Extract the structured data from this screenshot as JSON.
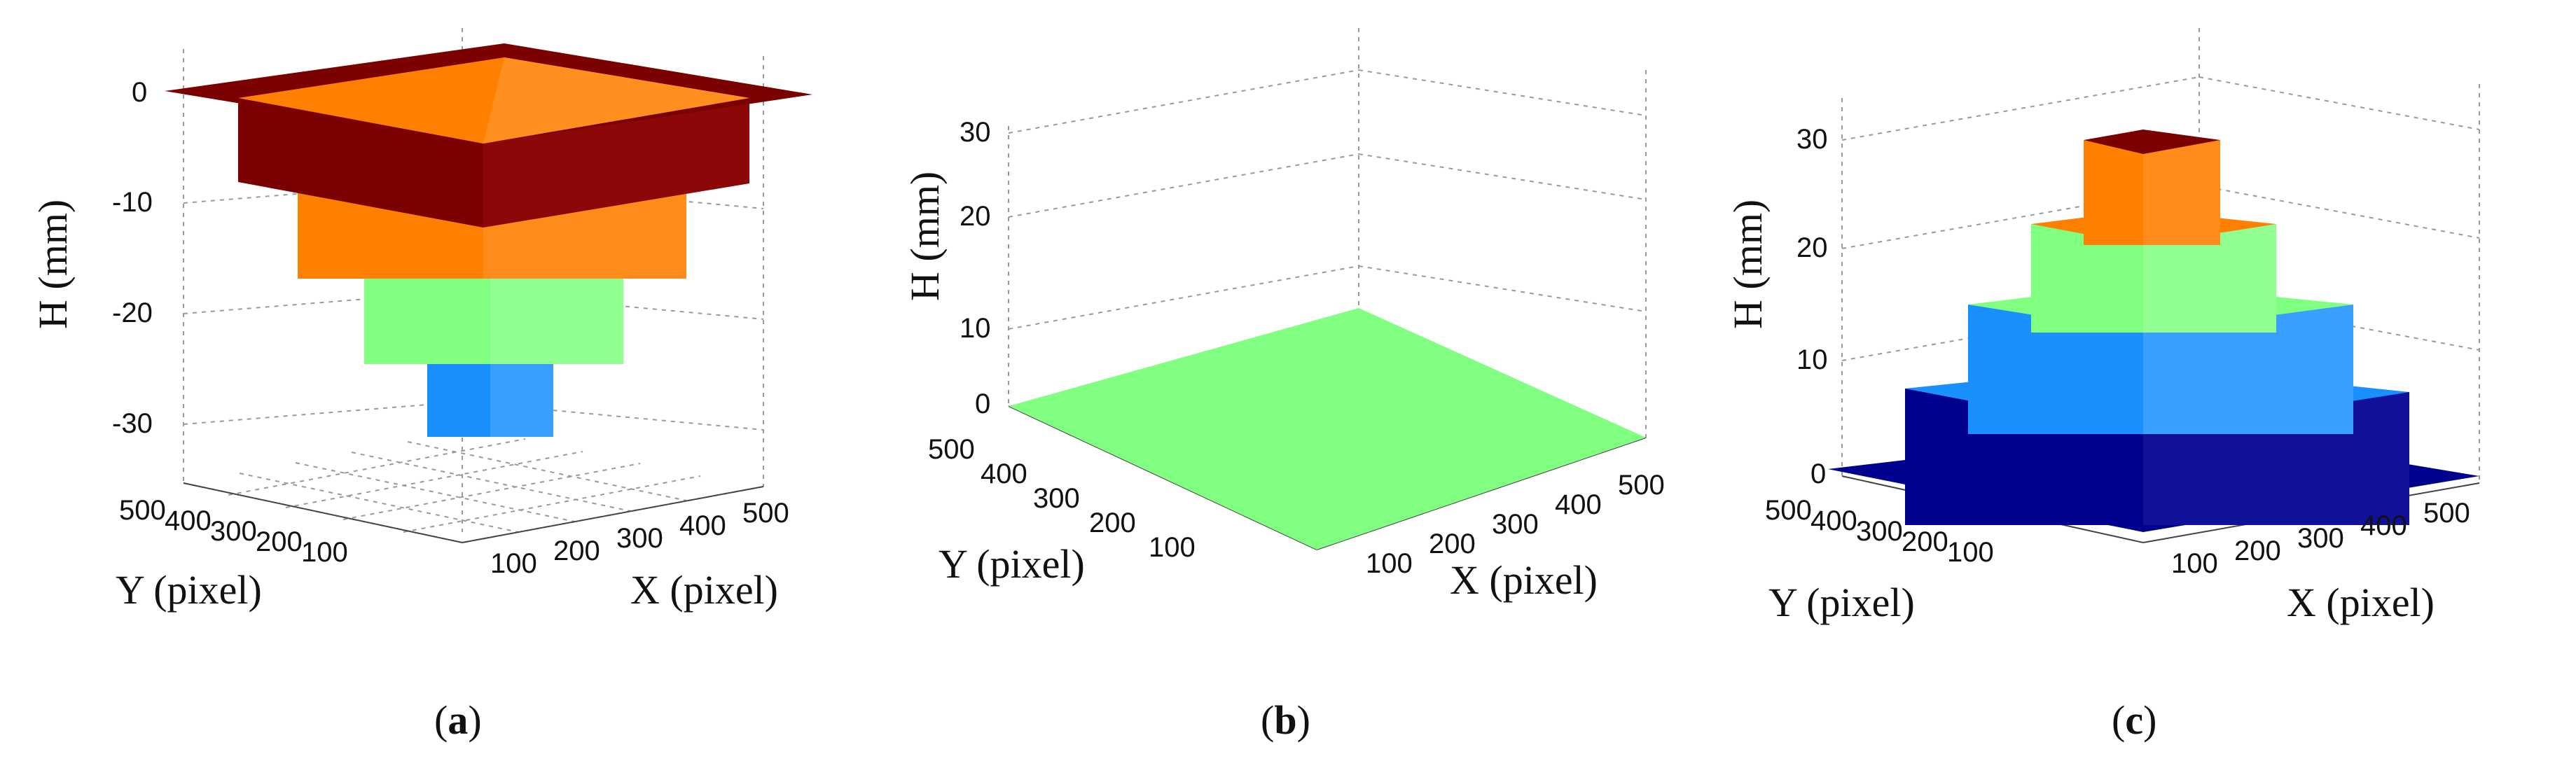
{
  "colors": {
    "dark_red": "#7b0000",
    "orange": "#ff8000",
    "green": "#80ff80",
    "cyan_blue": "#1a90ff",
    "navy": "#00008f"
  },
  "chart_data": [
    {
      "type": "3d-surface",
      "caption": "a",
      "xlabel": "X (pixel)",
      "ylabel": "Y (pixel)",
      "zlabel": "H (mm)",
      "x_ticks": [
        "100",
        "200",
        "300",
        "400",
        "500"
      ],
      "y_ticks": [
        "100",
        "200",
        "300",
        "400",
        "500"
      ],
      "z_ticks": [
        "0",
        "-10",
        "-20",
        "-30"
      ],
      "zlim": [
        -32,
        0
      ],
      "grid": true,
      "shape": "inverted-stepped-pyramid",
      "levels": [
        {
          "h_top": 0,
          "h_bottom": -8,
          "x": [
            0,
            512
          ],
          "y": [
            0,
            512
          ],
          "color": "dark_red"
        },
        {
          "h_top": -8,
          "h_bottom": -16,
          "x": [
            64,
            448
          ],
          "y": [
            64,
            448
          ],
          "color": "orange"
        },
        {
          "h_top": -16,
          "h_bottom": -24,
          "x": [
            128,
            384
          ],
          "y": [
            128,
            384
          ],
          "color": "green"
        },
        {
          "h_top": -24,
          "h_bottom": -32,
          "x": [
            192,
            320
          ],
          "y": [
            192,
            320
          ],
          "color": "cyan_blue"
        }
      ]
    },
    {
      "type": "3d-surface",
      "caption": "b",
      "xlabel": "X (pixel)",
      "ylabel": "Y (pixel)",
      "zlabel": "H (mm)",
      "x_ticks": [
        "100",
        "200",
        "300",
        "400",
        "500"
      ],
      "y_ticks": [
        "100",
        "200",
        "300",
        "400",
        "500"
      ],
      "z_ticks": [
        "0",
        "10",
        "20",
        "30"
      ],
      "zlim": [
        0,
        34
      ],
      "grid": true,
      "shape": "flat-plane",
      "levels": [
        {
          "h": 0,
          "x": [
            0,
            512
          ],
          "y": [
            0,
            512
          ],
          "color": "green"
        }
      ]
    },
    {
      "type": "3d-surface",
      "caption": "c",
      "xlabel": "X (pixel)",
      "ylabel": "Y (pixel)",
      "zlabel": "H (mm)",
      "x_ticks": [
        "100",
        "200",
        "300",
        "400",
        "500"
      ],
      "y_ticks": [
        "100",
        "200",
        "300",
        "400",
        "500"
      ],
      "z_ticks": [
        "0",
        "10",
        "20",
        "30"
      ],
      "zlim": [
        0,
        34
      ],
      "grid": true,
      "shape": "stepped-pyramid",
      "levels": [
        {
          "h_bottom": 0,
          "h_top": 8,
          "x": [
            64,
            448
          ],
          "y": [
            64,
            448
          ],
          "color": "navy"
        },
        {
          "h_bottom": 8,
          "h_top": 16,
          "x": [
            128,
            384
          ],
          "y": [
            128,
            384
          ],
          "color": "cyan_blue"
        },
        {
          "h_bottom": 16,
          "h_top": 24,
          "x": [
            192,
            320
          ],
          "y": [
            192,
            320
          ],
          "color": "green"
        },
        {
          "h_bottom": 24,
          "h_top": 32,
          "x": [
            224,
            288
          ],
          "y": [
            224,
            288
          ],
          "color": "orange"
        },
        {
          "h": 32,
          "x": [
            224,
            288
          ],
          "y": [
            224,
            288
          ],
          "color": "dark_red"
        }
      ]
    }
  ]
}
